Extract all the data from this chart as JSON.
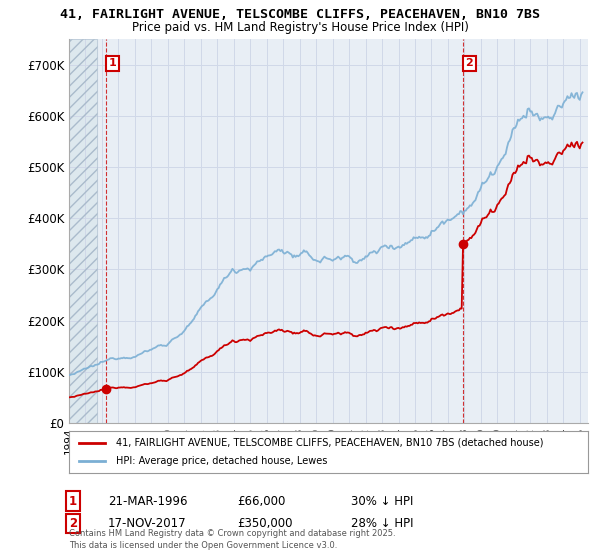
{
  "title_line1": "41, FAIRLIGHT AVENUE, TELSCOMBE CLIFFS, PEACEHAVEN, BN10 7BS",
  "title_line2": "Price paid vs. HM Land Registry's House Price Index (HPI)",
  "ylim": [
    0,
    750000
  ],
  "yticks": [
    0,
    100000,
    200000,
    300000,
    400000,
    500000,
    600000,
    700000
  ],
  "ytick_labels": [
    "£0",
    "£100K",
    "£200K",
    "£300K",
    "£400K",
    "£500K",
    "£600K",
    "£700K"
  ],
  "xlim_start": 1994.0,
  "xlim_end": 2025.5,
  "hpi_color": "#7bafd4",
  "price_color": "#cc0000",
  "sale1_date": 1996.22,
  "sale1_price": 66000,
  "sale1_label": "1",
  "sale2_date": 2017.89,
  "sale2_price": 350000,
  "sale2_label": "2",
  "legend_line1": "41, FAIRLIGHT AVENUE, TELSCOMBE CLIFFS, PEACEHAVEN, BN10 7BS (detached house)",
  "legend_line2": "HPI: Average price, detached house, Lewes",
  "annotation1_date": "21-MAR-1996",
  "annotation1_price": "£66,000",
  "annotation1_hpi": "30% ↓ HPI",
  "annotation2_date": "17-NOV-2017",
  "annotation2_price": "£350,000",
  "annotation2_hpi": "28% ↓ HPI",
  "copyright_text": "Contains HM Land Registry data © Crown copyright and database right 2025.\nThis data is licensed under the Open Government Licence v3.0.",
  "grid_color": "#d0d8e8",
  "bg_color": "#dce8f0",
  "plot_bg": "#e8eef5"
}
